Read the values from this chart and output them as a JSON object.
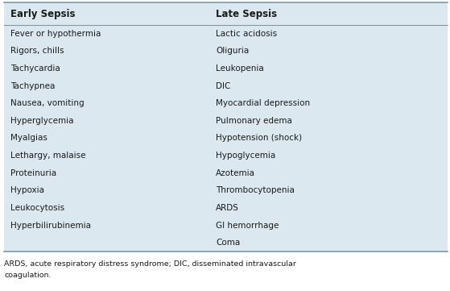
{
  "header_col1": "Early Sepsis",
  "header_col2": "Late Sepsis",
  "col1_items": [
    "Fever or hypothermia",
    "Rigors, chills",
    "Tachycardia",
    "Tachypnea",
    "Nausea, vomiting",
    "Hyperglycemia",
    "Myalgias",
    "Lethargy, malaise",
    "Proteinuria",
    "Hypoxia",
    "Leukocytosis",
    "Hyperbilirubinemia"
  ],
  "col2_items": [
    "Lactic acidosis",
    "Oliguria",
    "Leukopenia",
    "DIC",
    "Myocardial depression",
    "Pulmonary edema",
    "Hypotension (shock)",
    "Hypoglycemia",
    "Azotemia",
    "Thrombocytopenia",
    "ARDS",
    "GI hemorrhage",
    "Coma"
  ],
  "footnote_line1": "ARDS, acute respiratory distress syndrome; DIC, disseminated intravascular",
  "footnote_line2": "coagulation.",
  "bg_color": "#dce8f0",
  "text_color": "#1a1a1a",
  "header_text_color": "#1a1a1a",
  "footnote_color": "#1a1a1a",
  "border_color": "#7a9ab0",
  "fig_bg_color": "#ffffff",
  "fig_width": 5.59,
  "fig_height": 3.61,
  "dpi": 100
}
